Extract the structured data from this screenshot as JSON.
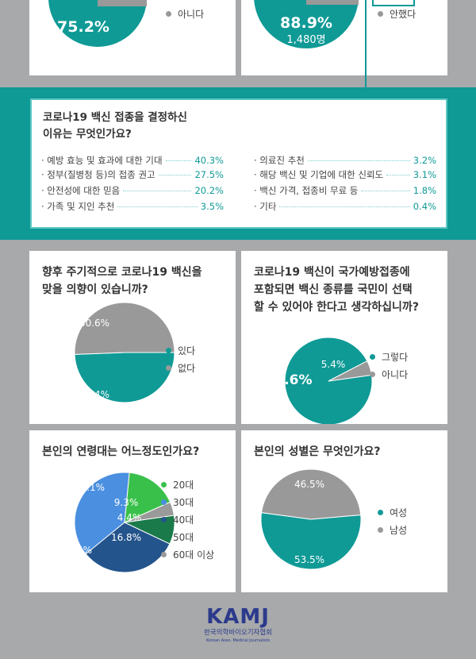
{
  "colors": {
    "teal": "#0f9a96",
    "gray": "#999999",
    "green": "#39c04a",
    "blue": "#4a8fe0",
    "navy": "#24548c",
    "darkgreen": "#1a7a4a",
    "lightgray": "#9a9a9a"
  },
  "top_cards": {
    "left": {
      "value_label": "75.2%",
      "legend": [
        "아니다"
      ]
    },
    "right": {
      "value_label": "88.9%",
      "count_label": "1,480명",
      "legend": [
        "안했다"
      ]
    }
  },
  "reasons": {
    "title_lines": [
      "코로나19 백신 접종을 결정하신",
      "이유는 무엇인가요?"
    ],
    "left": [
      {
        "label": "· 예방 효능 및 효과에 대한 기대",
        "value": "40.3%"
      },
      {
        "label": "· 정부(질병청 등)의 접종 권고",
        "value": "27.5%"
      },
      {
        "label": "· 안전성에 대한 믿음",
        "value": "20.2%"
      },
      {
        "label": "· 가족 및 지인 추천",
        "value": "3.5%"
      }
    ],
    "right": [
      {
        "label": "· 의료진 추천",
        "value": "3.2%"
      },
      {
        "label": "· 해당 백신 및 기업에 대한 신뢰도",
        "value": "3.1%"
      },
      {
        "label": "· 백신 가격, 접종비 무료 등",
        "value": "1.8%"
      },
      {
        "label": "· 기타",
        "value": "0.4%"
      }
    ]
  },
  "chart_data": [
    {
      "type": "pie",
      "title": "향후 주기적으로 코로나19 백신을 맞을 의향이 있습니까?",
      "title_lines": [
        "향후 주기적으로 코로나19 백신을",
        "맞을 의향이 있습니까?"
      ],
      "categories": [
        "있다",
        "없다"
      ],
      "values": [
        49.4,
        50.6
      ],
      "labels": [
        "49.4%",
        "50.6%"
      ],
      "colors": [
        "#0f9a96",
        "#999999"
      ]
    },
    {
      "type": "pie",
      "title": "코로나19 백신이 국가예방접종에 포함되면 백신 종류를 국민이 선택할 수 있어야 한다고 생각하십니까?",
      "title_lines": [
        "코로나19 백신이 국가예방접종에",
        "포함되면 백신 종류를 국민이 선택",
        "할 수 있어야 한다고 생각하십니까?"
      ],
      "categories": [
        "그렇다",
        "아니다"
      ],
      "values": [
        94.6,
        5.4
      ],
      "labels": [
        "94.6%",
        "5.4%"
      ],
      "colors": [
        "#0f9a96",
        "#999999"
      ]
    },
    {
      "type": "pie",
      "title": "본인의 연령대는 어느정도인가요?",
      "title_lines": [
        "본인의 연령대는 어느정도인가요?"
      ],
      "categories": [
        "20대",
        "30대",
        "40대",
        "50대",
        "60대 이상"
      ],
      "values": [
        16.8,
        37.4,
        32.1,
        9.3,
        4.4
      ],
      "labels": [
        "16.8%",
        "37.4%",
        "32.1%",
        "9.3%",
        "4.4%"
      ],
      "colors": [
        "#39c04a",
        "#4a8fe0",
        "#24548c",
        "#1a7a4a",
        "#9a9a9a"
      ]
    },
    {
      "type": "pie",
      "title": "본인의 성별은 무엇인가요?",
      "title_lines": [
        "본인의 성별은 무엇인가요?"
      ],
      "categories": [
        "여성",
        "남성"
      ],
      "values": [
        53.5,
        46.5
      ],
      "labels": [
        "53.5%",
        "46.5%"
      ],
      "colors": [
        "#0f9a96",
        "#999999"
      ]
    }
  ],
  "logo": {
    "main": "KAMJ",
    "sub": "한국의학바이오기자협회",
    "sub_en": "Korean Asso. Medical Journalists"
  }
}
